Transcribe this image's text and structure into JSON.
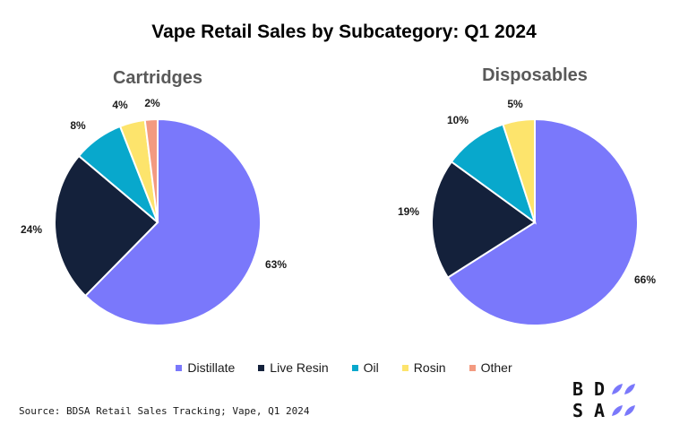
{
  "title": "Vape Retail Sales by Subcategory: Q1 2024",
  "source": "Source: BDSA Retail Sales Tracking; Vape, Q1 2024",
  "logo": {
    "line1": "BD",
    "line2": "SA"
  },
  "colors": {
    "Distillate": "#7a78fb",
    "Live Resin": "#14213b",
    "Oil": "#08a8cc",
    "Rosin": "#fde46c",
    "Other": "#f39a80"
  },
  "chart_data": [
    {
      "type": "pie",
      "title": "Cartridges",
      "slices": [
        {
          "label": "Distillate",
          "value": 63,
          "display": "63%"
        },
        {
          "label": "Live Resin",
          "value": 24,
          "display": "24%"
        },
        {
          "label": "Oil",
          "value": 8,
          "display": "8%"
        },
        {
          "label": "Rosin",
          "value": 4,
          "display": "4%"
        },
        {
          "label": "Other",
          "value": 2,
          "display": "2%"
        }
      ]
    },
    {
      "type": "pie",
      "title": "Disposables",
      "slices": [
        {
          "label": "Distillate",
          "value": 66,
          "display": "66%"
        },
        {
          "label": "Live Resin",
          "value": 19,
          "display": "19%"
        },
        {
          "label": "Oil",
          "value": 10,
          "display": "10%"
        },
        {
          "label": "Rosin",
          "value": 5,
          "display": "5%"
        }
      ]
    }
  ],
  "legend": [
    "Distillate",
    "Live Resin",
    "Oil",
    "Rosin",
    "Other"
  ]
}
